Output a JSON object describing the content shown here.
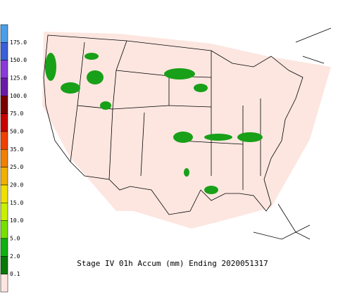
{
  "legend": {
    "labels": [
      "175.0",
      "150.0",
      "125.0",
      "100.0",
      "75.0",
      "50.0",
      "35.0",
      "25.0",
      "20.0",
      "15.0",
      "10.0",
      "5.0",
      "2.0",
      "0.1"
    ],
    "colors": [
      "#4a9ee8",
      "#3a5fd8",
      "#8a3ad8",
      "#6a1aa8",
      "#7a0000",
      "#c80000",
      "#f04000",
      "#f08000",
      "#f0b000",
      "#f0e000",
      "#c8f000",
      "#78e000",
      "#10b010",
      "#087808",
      "#fde6e0"
    ]
  },
  "caption": "Stage IV 01h Accum (mm) Ending 2020051317"
}
